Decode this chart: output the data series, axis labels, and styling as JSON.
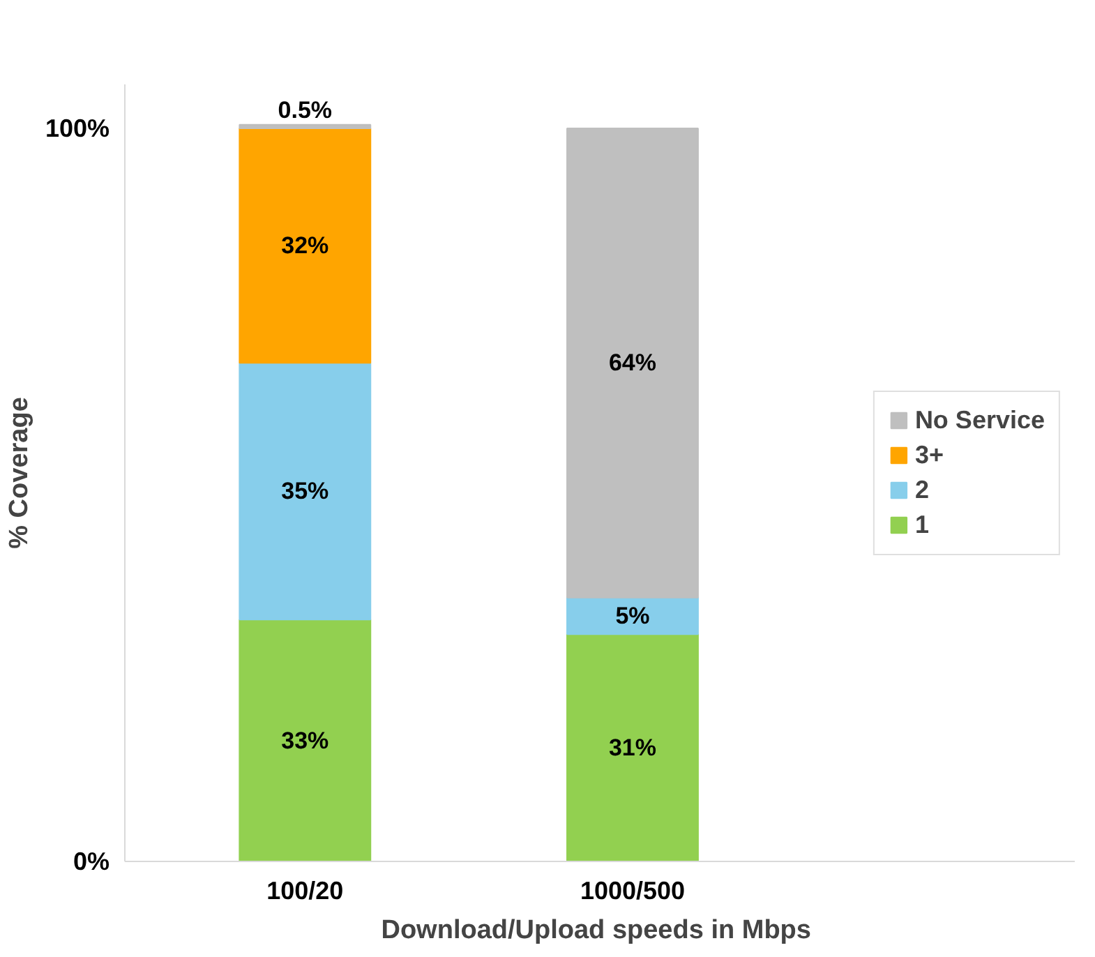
{
  "chart_data": {
    "type": "bar",
    "stacked": true,
    "xlabel": "Download/Upload  speeds in Mbps",
    "ylabel": "% Coverage",
    "categories": [
      "100/20",
      "1000/500"
    ],
    "series": [
      {
        "name": "1",
        "color": "#92d050",
        "values": [
          33,
          31
        ],
        "value_labels": [
          "33%",
          "31%"
        ]
      },
      {
        "name": "2",
        "color": "#87ceeb",
        "values": [
          35,
          5
        ],
        "value_labels": [
          "35%",
          "5%"
        ]
      },
      {
        "name": "3+",
        "color": "#ffa500",
        "values": [
          32,
          null
        ],
        "value_labels": [
          "32%",
          null
        ]
      },
      {
        "name": "No Service",
        "color": "#bfbfbf",
        "values": [
          0.5,
          64
        ],
        "value_labels": [
          "0.5%",
          "64%"
        ]
      }
    ],
    "ylim": [
      0,
      106
    ],
    "yticks": [
      {
        "value": 0,
        "label": "0%"
      },
      {
        "value": 100,
        "label": "100%"
      }
    ],
    "legend": "right"
  }
}
